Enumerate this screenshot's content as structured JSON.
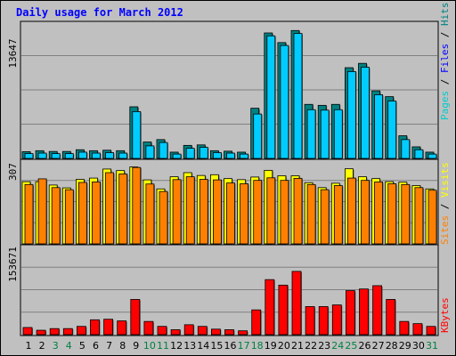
{
  "title": "Daily usage for March 2012",
  "colors": {
    "pages": "#1a9c8c",
    "files": "#00ccff",
    "hits": "#008080",
    "visits": "#ffff00",
    "sites": "#ff8000",
    "kbytes": "#ff0000",
    "day_weekday": "#000000",
    "day_weekend": "#008040",
    "legend_pages": "#00cccc",
    "legend_files": "#0000ff",
    "legend_hits": "#008080",
    "legend_visits": "#ffff00",
    "legend_sites": "#ff8000",
    "legend_kbytes": "#ff0000"
  },
  "chart_data": [
    {
      "type": "bar",
      "panel": "hits_files_pages",
      "ymax_label": "13647",
      "ylim": [
        0,
        13647
      ],
      "legend": [
        "Pages",
        "Files",
        "Hits"
      ],
      "categories": [
        "1",
        "2",
        "3",
        "4",
        "5",
        "6",
        "7",
        "8",
        "9",
        "10",
        "11",
        "12",
        "13",
        "14",
        "15",
        "16",
        "17",
        "18",
        "19",
        "20",
        "21",
        "22",
        "23",
        "24",
        "25",
        "26",
        "27",
        "28",
        "29",
        "30",
        "31"
      ],
      "series": [
        {
          "name": "Hits",
          "values": [
            700,
            800,
            720,
            720,
            900,
            800,
            850,
            800,
            5350,
            1700,
            1950,
            650,
            1350,
            1400,
            800,
            750,
            650,
            5200,
            13000,
            12000,
            13250,
            5600,
            5500,
            5600,
            9400,
            9850,
            7000,
            6400,
            2350,
            1200,
            650
          ]
        },
        {
          "name": "Files",
          "values": [
            500,
            550,
            500,
            500,
            650,
            550,
            600,
            550,
            4850,
            1300,
            1650,
            450,
            1050,
            1150,
            600,
            550,
            450,
            4600,
            12700,
            11700,
            12950,
            5050,
            5000,
            5050,
            9000,
            9450,
            6600,
            5950,
            1950,
            900,
            450
          ]
        }
      ]
    },
    {
      "type": "bar",
      "panel": "visits_sites",
      "ymax_label": "307",
      "ylim": [
        0,
        307
      ],
      "legend": [
        "Sites",
        "Visits"
      ],
      "categories": [
        "1",
        "2",
        "3",
        "4",
        "5",
        "6",
        "7",
        "8",
        "9",
        "10",
        "11",
        "12",
        "13",
        "14",
        "15",
        "16",
        "17",
        "18",
        "19",
        "20",
        "21",
        "22",
        "23",
        "24",
        "25",
        "26",
        "27",
        "28",
        "29",
        "30",
        "31"
      ],
      "series": [
        {
          "name": "Visits",
          "values": [
            241,
            241,
            228,
            217,
            250,
            255,
            290,
            284,
            298,
            248,
            213,
            260,
            276,
            265,
            268,
            253,
            249,
            259,
            285,
            264,
            264,
            237,
            218,
            235,
            291,
            260,
            253,
            241,
            239,
            226,
            213
          ]
        },
        {
          "name": "Sites",
          "values": [
            230,
            252,
            218,
            210,
            238,
            240,
            276,
            271,
            296,
            232,
            203,
            249,
            260,
            250,
            248,
            236,
            233,
            246,
            256,
            246,
            254,
            230,
            210,
            226,
            255,
            246,
            240,
            233,
            230,
            218,
            208
          ]
        }
      ]
    },
    {
      "type": "bar",
      "panel": "kbytes",
      "ymax_label": "153671",
      "ylim": [
        0,
        153671
      ],
      "legend": [
        "KBytes"
      ],
      "categories": [
        "1",
        "2",
        "3",
        "4",
        "5",
        "6",
        "7",
        "8",
        "9",
        "10",
        "11",
        "12",
        "13",
        "14",
        "15",
        "16",
        "17",
        "18",
        "19",
        "20",
        "21",
        "22",
        "23",
        "24",
        "25",
        "26",
        "27",
        "28",
        "29",
        "30",
        "31"
      ],
      "series": [
        {
          "name": "KBytes",
          "values": [
            13000,
            8000,
            11000,
            11000,
            15000,
            27000,
            28000,
            25000,
            64000,
            24000,
            15000,
            9000,
            18000,
            15000,
            10000,
            9000,
            7000,
            45000,
            100000,
            90000,
            115000,
            51000,
            51000,
            54000,
            80000,
            83000,
            89000,
            64000,
            24000,
            20000,
            15000
          ]
        }
      ]
    }
  ],
  "legend_top": {
    "pages": "Pages",
    "sep1": " / ",
    "files": "Files",
    "sep2": " / ",
    "hits": "Hits"
  },
  "legend_mid": {
    "sites": "Sites",
    "sep1": " / ",
    "visits": "Visits"
  },
  "legend_bot": {
    "kbytes": "KBytes"
  }
}
